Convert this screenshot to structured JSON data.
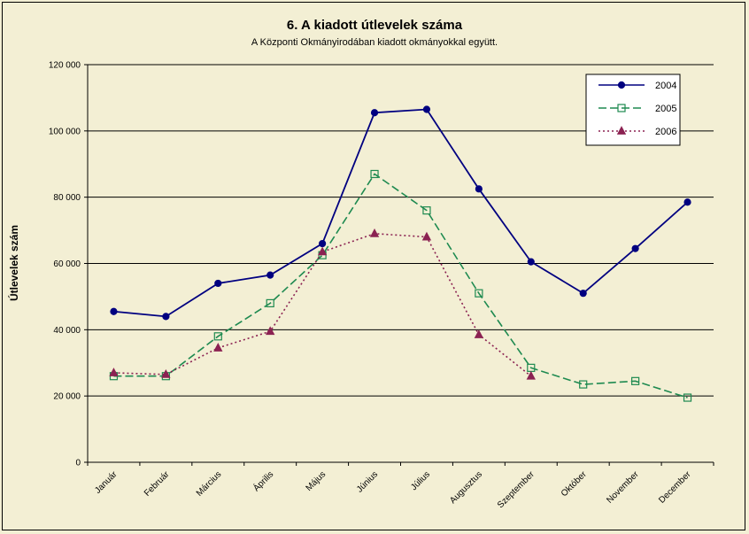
{
  "chart_data": {
    "type": "line",
    "title": "6. A  kiadott útlevelek száma",
    "subtitle": "A Központi Okmányirodában kiadott okmányokkal együtt.",
    "ylabel": "Útlevelek szám",
    "xlabel": "",
    "ylim": [
      0,
      120000
    ],
    "yticks": [
      0,
      20000,
      40000,
      60000,
      80000,
      100000,
      120000
    ],
    "ytick_labels": [
      "0",
      "20 000",
      "40 000",
      "60 000",
      "80 000",
      "100 000",
      "120 000"
    ],
    "categories": [
      "Január",
      "Február",
      "Március",
      "Április",
      "Május",
      "Június",
      "Július",
      "Augusztus",
      "Szeptember",
      "Október",
      "November",
      "December"
    ],
    "grid": true,
    "legend_position": "top-right",
    "series": [
      {
        "name": "2004",
        "color": "#000080",
        "style": "solid",
        "marker": "filled-circle",
        "values": [
          45500,
          44000,
          54000,
          56500,
          66000,
          105500,
          106500,
          82500,
          60500,
          51000,
          64500,
          78500
        ]
      },
      {
        "name": "2005",
        "color": "#1e8a50",
        "style": "dashed",
        "marker": "open-square",
        "values": [
          26000,
          26000,
          38000,
          48000,
          62500,
          87000,
          76000,
          51000,
          28500,
          23500,
          24500,
          19500
        ]
      },
      {
        "name": "2006",
        "color": "#8b2252",
        "style": "dotted",
        "marker": "filled-triangle",
        "values": [
          27000,
          26500,
          34500,
          39500,
          63500,
          69000,
          68000,
          38500,
          26000,
          null,
          null,
          null
        ]
      }
    ]
  }
}
